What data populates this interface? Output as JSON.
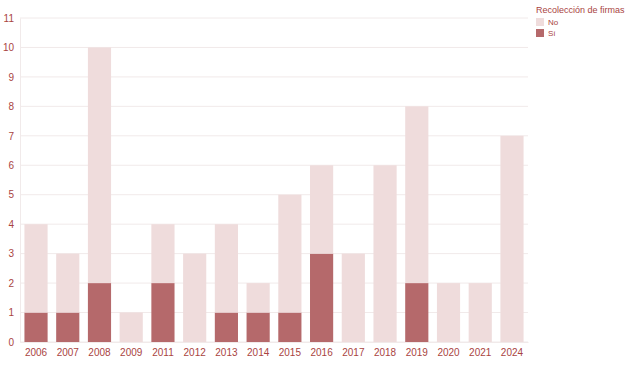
{
  "chart_data": {
    "type": "bar",
    "stacked": true,
    "categories": [
      "2006",
      "2007",
      "2008",
      "2009",
      "2011",
      "2012",
      "2013",
      "2014",
      "2015",
      "2016",
      "2017",
      "2018",
      "2019",
      "2020",
      "2021",
      "2024"
    ],
    "series": [
      {
        "name": "No",
        "color": "#efdcdc",
        "values": [
          3,
          2,
          8,
          1,
          2,
          3,
          3,
          1,
          4,
          3,
          3,
          6,
          6,
          2,
          2,
          7
        ]
      },
      {
        "name": "Sí",
        "color": "#b5696b",
        "values": [
          1,
          1,
          2,
          0,
          2,
          0,
          1,
          1,
          1,
          3,
          0,
          0,
          2,
          0,
          0,
          0
        ]
      }
    ],
    "ylim": [
      0,
      11
    ],
    "yticks": [
      0,
      1,
      2,
      3,
      4,
      5,
      6,
      7,
      8,
      9,
      10,
      11
    ],
    "grid": true,
    "legend": "top-right",
    "legend_title": "Recolección de firmas"
  }
}
